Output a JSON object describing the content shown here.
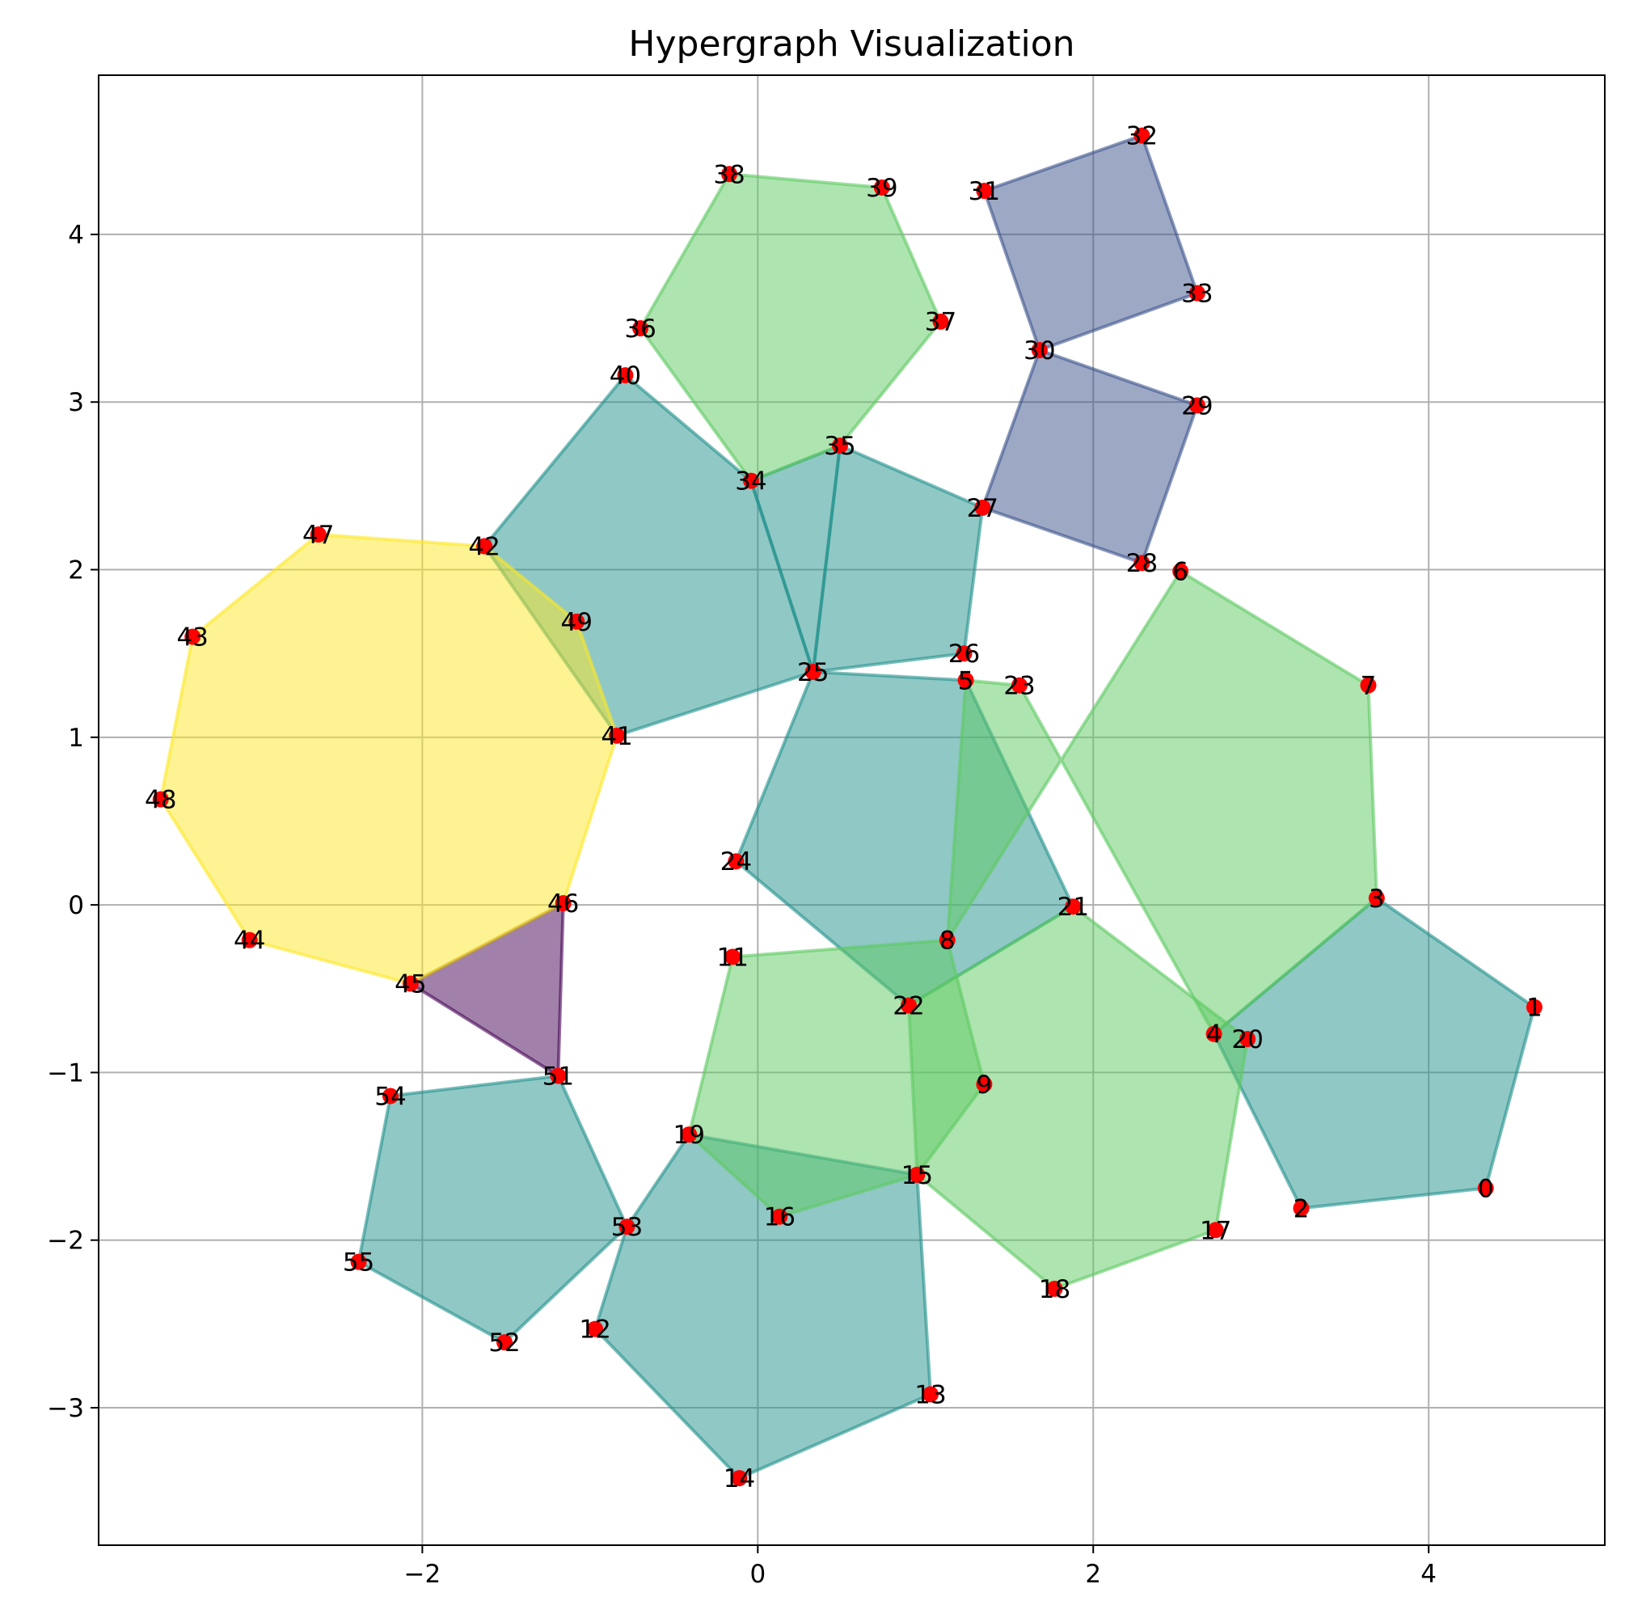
{
  "chart_data": {
    "type": "hypergraph",
    "title": "Hypergraph Visualization",
    "xlabel": "",
    "ylabel": "",
    "xlim": [
      -3.93,
      5.05
    ],
    "ylim": [
      -3.82,
      4.95
    ],
    "xticks": [
      -2,
      0,
      2,
      4
    ],
    "yticks": [
      -3,
      -2,
      -1,
      0,
      1,
      2,
      3,
      4
    ],
    "xtick_labels": [
      "−2",
      "0",
      "2",
      "4"
    ],
    "ytick_labels": [
      "−3",
      "−2",
      "−1",
      "0",
      "1",
      "2",
      "3",
      "4"
    ],
    "grid": true,
    "node_color": "#ff0000",
    "nodes": [
      {
        "id": "0",
        "x": 4.34,
        "y": -1.69
      },
      {
        "id": "1",
        "x": 4.63,
        "y": -0.61
      },
      {
        "id": "2",
        "x": 3.24,
        "y": -1.81
      },
      {
        "id": "3",
        "x": 3.69,
        "y": 0.04
      },
      {
        "id": "4",
        "x": 2.72,
        "y": -0.77
      },
      {
        "id": "5",
        "x": 1.24,
        "y": 1.34
      },
      {
        "id": "6",
        "x": 2.52,
        "y": 1.99
      },
      {
        "id": "7",
        "x": 3.64,
        "y": 1.31
      },
      {
        "id": "8",
        "x": 1.13,
        "y": -0.21
      },
      {
        "id": "9",
        "x": 1.35,
        "y": -1.07
      },
      {
        "id": "11",
        "x": -0.15,
        "y": -0.31
      },
      {
        "id": "12",
        "x": -0.97,
        "y": -2.53
      },
      {
        "id": "13",
        "x": 1.03,
        "y": -2.92
      },
      {
        "id": "14",
        "x": -0.11,
        "y": -3.42
      },
      {
        "id": "15",
        "x": 0.95,
        "y": -1.61
      },
      {
        "id": "16",
        "x": 0.13,
        "y": -1.86
      },
      {
        "id": "17",
        "x": 2.73,
        "y": -1.94
      },
      {
        "id": "18",
        "x": 1.77,
        "y": -2.29
      },
      {
        "id": "19",
        "x": -0.41,
        "y": -1.37
      },
      {
        "id": "20",
        "x": 2.92,
        "y": -0.8
      },
      {
        "id": "21",
        "x": 1.88,
        "y": -0.01
      },
      {
        "id": "22",
        "x": 0.9,
        "y": -0.6
      },
      {
        "id": "23",
        "x": 1.56,
        "y": 1.31
      },
      {
        "id": "24",
        "x": -0.13,
        "y": 0.26
      },
      {
        "id": "25",
        "x": 0.33,
        "y": 1.39
      },
      {
        "id": "26",
        "x": 1.23,
        "y": 1.5
      },
      {
        "id": "27",
        "x": 1.34,
        "y": 2.37
      },
      {
        "id": "28",
        "x": 2.29,
        "y": 2.04
      },
      {
        "id": "29",
        "x": 2.62,
        "y": 2.98
      },
      {
        "id": "30",
        "x": 1.68,
        "y": 3.31
      },
      {
        "id": "31",
        "x": 1.35,
        "y": 4.26
      },
      {
        "id": "32",
        "x": 2.29,
        "y": 4.59
      },
      {
        "id": "33",
        "x": 2.62,
        "y": 3.65
      },
      {
        "id": "34",
        "x": -0.04,
        "y": 2.53
      },
      {
        "id": "35",
        "x": 0.49,
        "y": 2.74
      },
      {
        "id": "36",
        "x": -0.7,
        "y": 3.44
      },
      {
        "id": "37",
        "x": 1.09,
        "y": 3.48
      },
      {
        "id": "38",
        "x": -0.17,
        "y": 4.36
      },
      {
        "id": "39",
        "x": 0.74,
        "y": 4.28
      },
      {
        "id": "40",
        "x": -0.79,
        "y": 3.16
      },
      {
        "id": "41",
        "x": -0.84,
        "y": 1.01
      },
      {
        "id": "42",
        "x": -1.63,
        "y": 2.14
      },
      {
        "id": "43",
        "x": -3.37,
        "y": 1.6
      },
      {
        "id": "44",
        "x": -3.03,
        "y": -0.21
      },
      {
        "id": "45",
        "x": -2.07,
        "y": -0.47
      },
      {
        "id": "46",
        "x": -1.16,
        "y": 0.01
      },
      {
        "id": "47",
        "x": -2.62,
        "y": 2.21
      },
      {
        "id": "48",
        "x": -3.56,
        "y": 0.63
      },
      {
        "id": "49",
        "x": -1.08,
        "y": 1.69
      },
      {
        "id": "51",
        "x": -1.19,
        "y": -1.02
      },
      {
        "id": "52",
        "x": -1.51,
        "y": -2.61
      },
      {
        "id": "53",
        "x": -0.78,
        "y": -1.92
      },
      {
        "id": "54",
        "x": -2.19,
        "y": -1.14
      },
      {
        "id": "55",
        "x": -2.38,
        "y": -2.13
      }
    ],
    "hyperedges": [
      {
        "nodes": [
          "45",
          "46",
          "51"
        ],
        "color": "#440154"
      },
      {
        "nodes": [
          "31",
          "32",
          "33",
          "30"
        ],
        "color": "#3b528b"
      },
      {
        "nodes": [
          "30",
          "29",
          "28",
          "27"
        ],
        "color": "#3b528b"
      },
      {
        "nodes": [
          "3",
          "1",
          "0",
          "2",
          "4"
        ],
        "color": "#21918c"
      },
      {
        "nodes": [
          "25",
          "24",
          "22",
          "21",
          "5"
        ],
        "color": "#21918c"
      },
      {
        "nodes": [
          "40",
          "42",
          "41",
          "25",
          "34"
        ],
        "color": "#21918c"
      },
      {
        "nodes": [
          "35",
          "27",
          "26",
          "25"
        ],
        "color": "#21918c"
      },
      {
        "nodes": [
          "34",
          "35",
          "25"
        ],
        "color": "#21918c"
      },
      {
        "nodes": [
          "19",
          "15",
          "13",
          "14",
          "12",
          "53"
        ],
        "color": "#21918c"
      },
      {
        "nodes": [
          "54",
          "51",
          "53",
          "52",
          "55"
        ],
        "color": "#21918c"
      },
      {
        "nodes": [
          "38",
          "39",
          "37",
          "35",
          "34",
          "36"
        ],
        "color": "#5ec962"
      },
      {
        "nodes": [
          "6",
          "7",
          "3",
          "4",
          "23",
          "5",
          "8"
        ],
        "color": "#5ec962"
      },
      {
        "nodes": [
          "11",
          "8",
          "9",
          "15",
          "16",
          "19"
        ],
        "color": "#5ec962"
      },
      {
        "nodes": [
          "22",
          "21",
          "20",
          "17",
          "18",
          "15"
        ],
        "color": "#5ec962"
      },
      {
        "nodes": [
          "47",
          "42",
          "49",
          "41",
          "46",
          "45",
          "44",
          "48",
          "43"
        ],
        "color": "#fde725"
      }
    ]
  }
}
